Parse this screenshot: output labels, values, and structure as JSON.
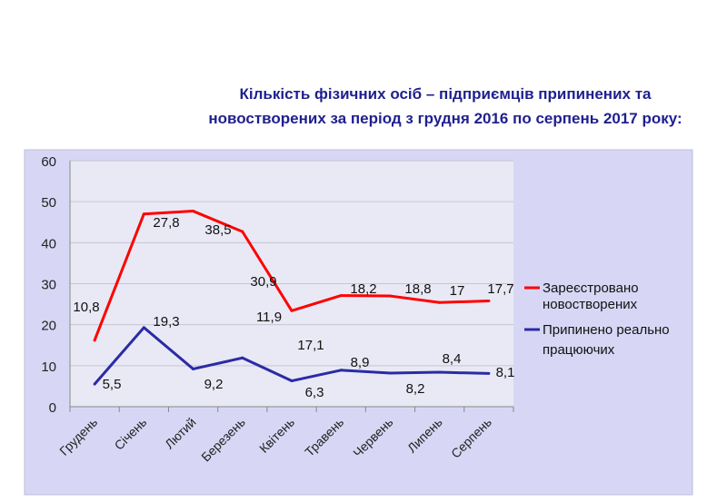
{
  "chart_data": {
    "type": "line",
    "title_lines": [
      "Кількість фізичних осіб – підприємців припинених та",
      "новостворених за період з грудня 2016 по серпень 2017 року:"
    ],
    "categories": [
      "Грудень",
      "Січень",
      "Лютий",
      "Березень",
      "Квітень",
      "Травень",
      "Червень",
      "Липень",
      "Серпень"
    ],
    "ylim": [
      0,
      60
    ],
    "yticks": [
      0,
      10,
      20,
      30,
      40,
      50,
      60
    ],
    "grid": true,
    "legend_position": "right",
    "series": [
      {
        "name_lines": [
          "Зареєстровано",
          "новостворених"
        ],
        "color": "#ff0000",
        "values": [
          16.2,
          47,
          47.7,
          42.7,
          23.4,
          27.1,
          27,
          25.4,
          25.8
        ],
        "labels": [
          "10,8",
          "27,8",
          "38,5",
          "30,9",
          "17,1",
          "18,2",
          "18,8",
          "17",
          "17,7"
        ]
      },
      {
        "name_lines": [
          "Припинено реально",
          "працюючих"
        ],
        "color": "#2b2ba6",
        "values": [
          5.5,
          19.3,
          9.2,
          11.9,
          6.3,
          8.9,
          8.2,
          8.4,
          8.1
        ],
        "labels": [
          "5,5",
          "19,3",
          "9,2",
          "11,9",
          "6,3",
          "8,9",
          "8,2",
          "8,4",
          "8,1"
        ]
      }
    ]
  }
}
